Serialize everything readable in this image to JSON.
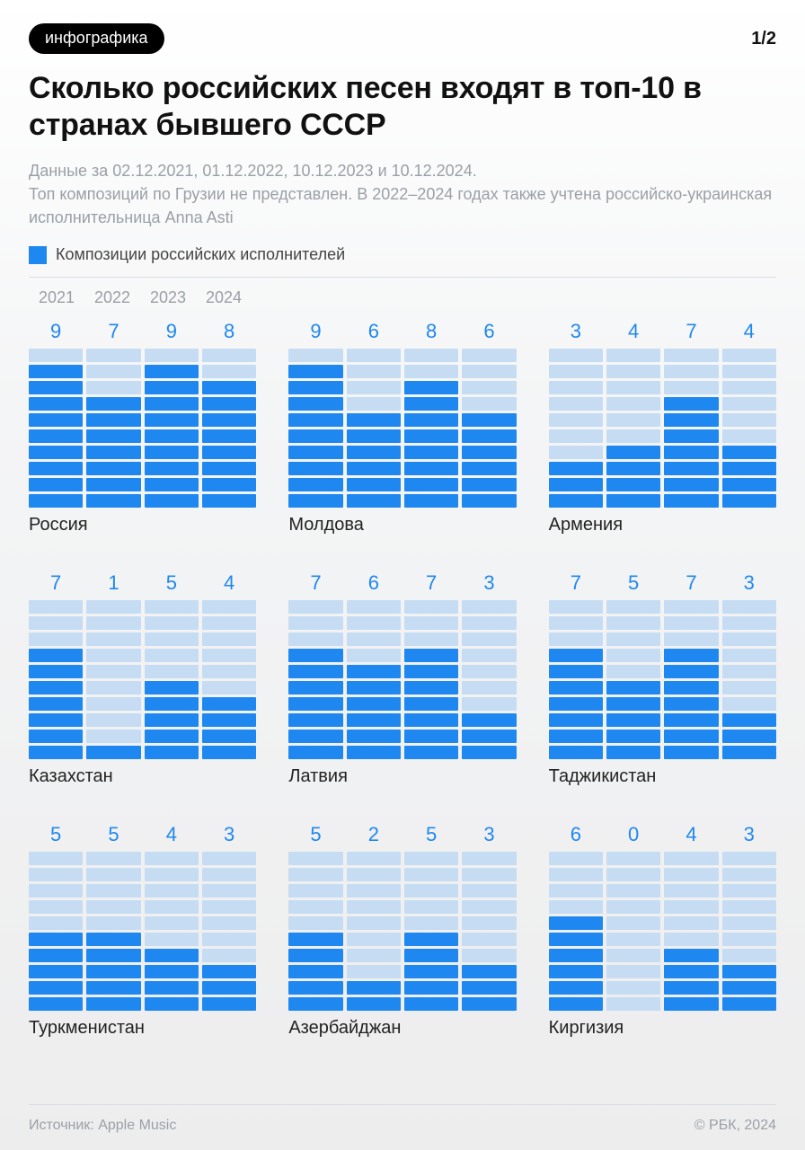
{
  "badge": "инфографика",
  "pagination": "1/2",
  "title": "Сколько российских песен входят в топ-10 в странах бывшего СССР",
  "subtitle": "Данные за 02.12.2021, 01.12.2022, 10.12.2023 и 10.12.2024.\nТоп композиций по Грузии не представлен. В 2022–2024 годах также учтена российско-украинская исполнительница Anna Asti",
  "legend_label": "Композиции российских исполнителей",
  "years": [
    "2021",
    "2022",
    "2023",
    "2024"
  ],
  "max_value": 10,
  "colors": {
    "filled": "#1e88f0",
    "empty": "#c5dcf3",
    "value_text": "#1e88f0",
    "muted_text": "#9aa0a6",
    "divider": "#d9dde1",
    "badge_bg": "#000000",
    "badge_fg": "#ffffff"
  },
  "countries": [
    {
      "name": "Россия",
      "values": [
        9,
        7,
        9,
        8
      ]
    },
    {
      "name": "Молдова",
      "values": [
        9,
        6,
        8,
        6
      ]
    },
    {
      "name": "Армения",
      "values": [
        3,
        4,
        7,
        4
      ]
    },
    {
      "name": "Казахстан",
      "values": [
        7,
        1,
        5,
        4
      ]
    },
    {
      "name": "Латвия",
      "values": [
        7,
        6,
        7,
        3
      ]
    },
    {
      "name": "Таджикистан",
      "values": [
        7,
        5,
        7,
        3
      ]
    },
    {
      "name": "Туркменистан",
      "values": [
        5,
        5,
        4,
        3
      ]
    },
    {
      "name": "Азербайджан",
      "values": [
        5,
        2,
        5,
        3
      ]
    },
    {
      "name": "Киргизия",
      "values": [
        6,
        0,
        4,
        3
      ]
    }
  ],
  "source_label": "Источник: Apple Music",
  "copyright": "© РБК, 2024"
}
